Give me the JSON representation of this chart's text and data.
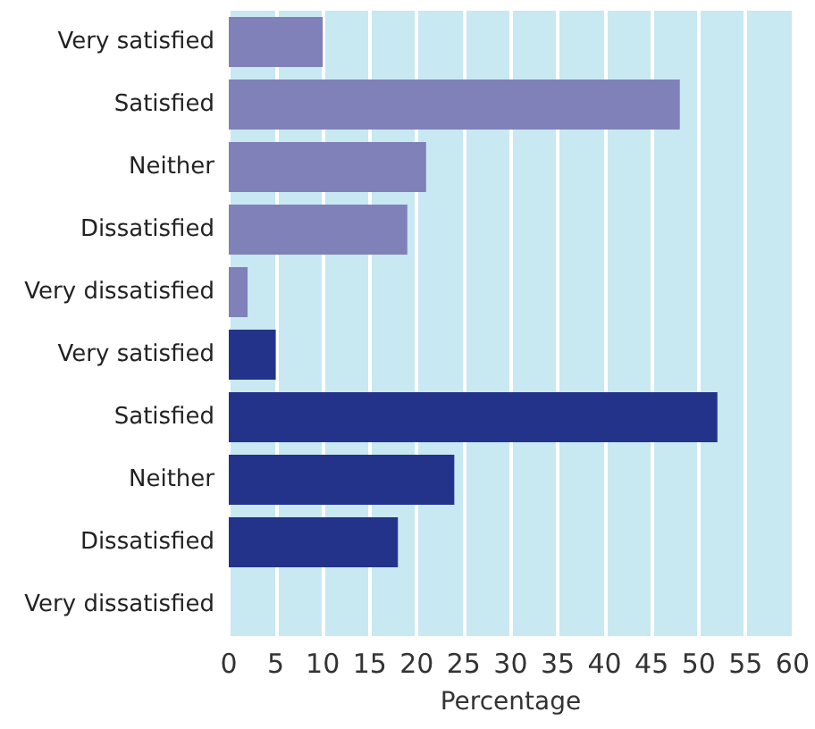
{
  "chart_data": {
    "type": "bar",
    "orientation": "horizontal",
    "xlabel": "Percentage",
    "categories": [
      "Very satisfied",
      "Satisfied",
      "Neither",
      "Dissatisfied",
      "Very dissatisfied",
      "Very satisfied",
      "Satisfied",
      "Neither",
      "Dissatisfied",
      "Very dissatisfied"
    ],
    "values": [
      10,
      48,
      21,
      19,
      2,
      5,
      52,
      24,
      18,
      0
    ],
    "colors": [
      "#8181b9",
      "#8181b9",
      "#8181b9",
      "#8181b9",
      "#8181b9",
      "#24338a",
      "#24338a",
      "#24338a",
      "#24338a",
      "#24338a"
    ],
    "xlim": [
      0,
      60
    ],
    "xticks": [
      0,
      5,
      10,
      15,
      20,
      25,
      30,
      35,
      40,
      45,
      50,
      55,
      60
    ],
    "grid": "x"
  }
}
